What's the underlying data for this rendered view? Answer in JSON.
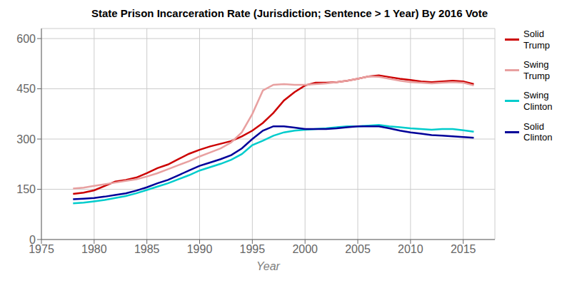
{
  "chart_data": {
    "type": "line",
    "title": "State Prison Incarceration Rate (Jurisdiction; Sentence > 1 Year) By 2016 Vote",
    "xlabel": "Year",
    "x": [
      1978,
      1979,
      1980,
      1981,
      1982,
      1983,
      1984,
      1985,
      1986,
      1987,
      1988,
      1989,
      1990,
      1991,
      1992,
      1993,
      1994,
      1995,
      1996,
      1997,
      1998,
      1999,
      2000,
      2001,
      2002,
      2003,
      2004,
      2005,
      2006,
      2007,
      2008,
      2009,
      2010,
      2011,
      2012,
      2013,
      2014,
      2015,
      2016
    ],
    "series": [
      {
        "name": "Solid\nTrump",
        "color": "#cc0000",
        "values": [
          136,
          140,
          147,
          160,
          173,
          178,
          185,
          198,
          213,
          224,
          240,
          256,
          268,
          278,
          286,
          294,
          308,
          325,
          348,
          378,
          415,
          440,
          460,
          468,
          468,
          470,
          474,
          480,
          487,
          490,
          485,
          480,
          476,
          472,
          470,
          472,
          474,
          472,
          464
        ]
      },
      {
        "name": "Swing\nTrump",
        "color": "#e8a0a0",
        "values": [
          152,
          155,
          160,
          165,
          170,
          175,
          180,
          188,
          198,
          210,
          222,
          234,
          248,
          260,
          272,
          290,
          320,
          375,
          445,
          462,
          464,
          462,
          462,
          464,
          466,
          470,
          474,
          480,
          487,
          486,
          480,
          474,
          470,
          468,
          466,
          468,
          470,
          468,
          460
        ]
      },
      {
        "name": "Swing\nClinton",
        "color": "#00cccc",
        "values": [
          108,
          110,
          114,
          118,
          124,
          130,
          138,
          148,
          158,
          168,
          180,
          192,
          206,
          216,
          226,
          238,
          255,
          282,
          295,
          310,
          320,
          325,
          328,
          330,
          332,
          335,
          338,
          338,
          340,
          342,
          338,
          335,
          332,
          330,
          328,
          330,
          330,
          326,
          322
        ]
      },
      {
        "name": "Solid\nClinton",
        "color": "#000099",
        "values": [
          120,
          122,
          124,
          128,
          133,
          138,
          146,
          156,
          168,
          178,
          192,
          206,
          220,
          230,
          240,
          252,
          272,
          300,
          325,
          338,
          338,
          334,
          330,
          330,
          330,
          332,
          335,
          338,
          338,
          338,
          332,
          325,
          320,
          316,
          312,
          310,
          308,
          306,
          304
        ]
      }
    ],
    "xlim": [
      1975,
      2018
    ],
    "ylim": [
      0,
      630
    ],
    "xticks": [
      1975,
      1980,
      1985,
      1990,
      1995,
      2000,
      2005,
      2010,
      2015
    ],
    "yticks": [
      0,
      150,
      300,
      450,
      600
    ],
    "grid": true,
    "legend": "right"
  }
}
